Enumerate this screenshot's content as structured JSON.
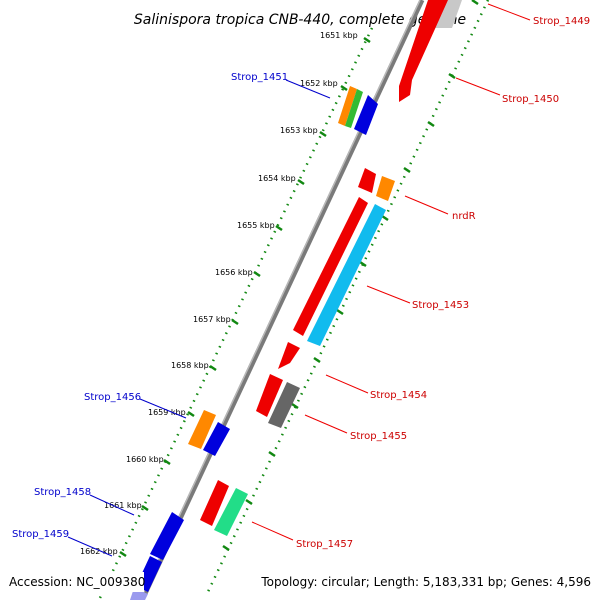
{
  "title": "Salinispora tropica CNB-440, complete genome",
  "footer": {
    "accession": "Accession: NC_009380",
    "topology": "Topology: circular; Length: 5,183,331 bp; Genes: 4,596"
  },
  "ticks": [
    "1651 kbp",
    "1652 kbp",
    "1653 kbp",
    "1654 kbp",
    "1655 kbp",
    "1656 kbp",
    "1657 kbp",
    "1658 kbp",
    "1659 kbp",
    "1660 kbp",
    "1661 kbp",
    "1662 kbp"
  ],
  "gene_labels": {
    "left": [
      "Strop_1451",
      "Strop_1456",
      "Strop_1458",
      "Strop_1459"
    ],
    "right": [
      "Strop_1449",
      "Strop_1450",
      "nrdR",
      "Strop_1453",
      "Strop_1454",
      "Strop_1455",
      "Strop_1457"
    ]
  },
  "colors": {
    "left_label": "#0000cc",
    "right_label": "#cc0000",
    "red_gene": "#ee0000",
    "blue_gene": "#0000dd",
    "orange_gene": "#ff8800",
    "green_gene": "#33bb33",
    "cyan_gene": "#11bbee",
    "gray_gene": "#666666",
    "mint_gene": "#22dd88",
    "tick_green": "#118811"
  }
}
